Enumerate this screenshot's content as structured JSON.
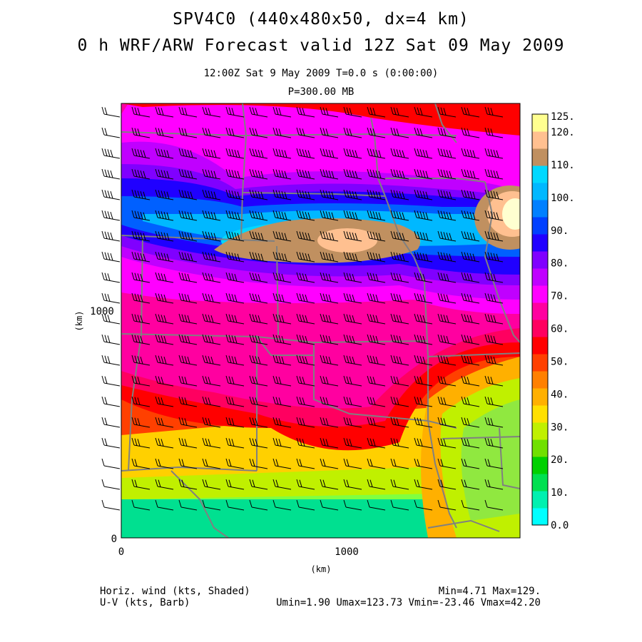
{
  "title": {
    "line1": "SPV4C0 (440x480x50, dx=4 km)",
    "line2": "0 h WRF/ARW Forecast valid 12Z Sat 09 May 2009"
  },
  "subtitle": {
    "time": "12:00Z Sat  9 May 2009     T=0.0 s (0:00:00)",
    "level": "P=300.00 MB"
  },
  "axes": {
    "x_label": "(km)",
    "y_label": "(km)",
    "x_ticks": [
      "0",
      "1000"
    ],
    "y_ticks": [
      "0",
      "1000"
    ]
  },
  "colorbar": {
    "labels": [
      "0.0",
      "10.",
      "20.",
      "30.",
      "40.",
      "50.",
      "60.",
      "70.",
      "80.",
      "90.",
      "100.",
      "110.",
      "120.",
      "125."
    ],
    "colors": [
      "#00ffff",
      "#00f0b0",
      "#00e050",
      "#00d000",
      "#70e000",
      "#c0f000",
      "#ffe000",
      "#ffb000",
      "#ff8000",
      "#ff4000",
      "#ff0000",
      "#ff0060",
      "#ff00a0",
      "#ff00ff",
      "#c000ff",
      "#8000ff",
      "#2000ff",
      "#0040ff",
      "#0080ff",
      "#00b8ff",
      "#00d8ff",
      "#c09060",
      "#ffc090",
      "#ffff90"
    ]
  },
  "footer": {
    "left1": "Horiz. wind (kts, Shaded)",
    "left2": "U-V (kts, Barb)",
    "right1": "Min=4.71 Max=129.",
    "right2": "Umin=1.90 Umax=123.73 Vmin=-23.46 Vmax=42.20"
  }
}
